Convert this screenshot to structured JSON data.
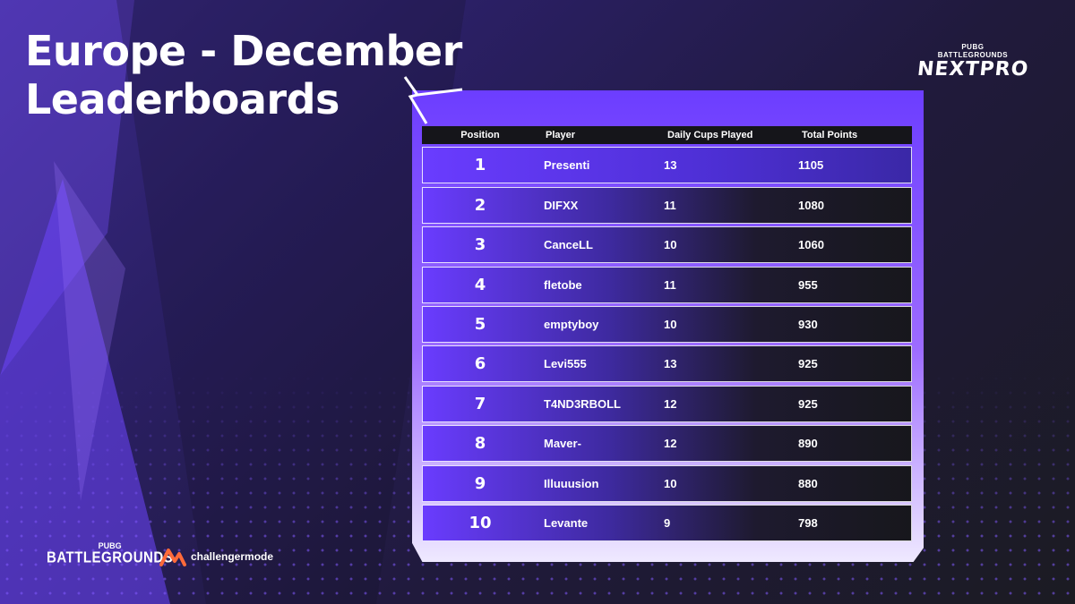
{
  "title": {
    "line1": "Europe - December",
    "line2": "Leaderboards"
  },
  "brand": {
    "top_small": "PUBG",
    "top_mid": "BATTLEGROUNDS",
    "top_big": "NEXTPRO"
  },
  "table": {
    "headers": {
      "position": "Position",
      "player": "Player",
      "cups": "Daily Cups Played",
      "points": "Total Points"
    },
    "rows": [
      {
        "position": "1",
        "player": "Presenti",
        "cups": "13",
        "points": "1105"
      },
      {
        "position": "2",
        "player": "DIFXX",
        "cups": "11",
        "points": "1080"
      },
      {
        "position": "3",
        "player": "CanceLL",
        "cups": "10",
        "points": "1060"
      },
      {
        "position": "4",
        "player": "fletobe",
        "cups": "11",
        "points": "955"
      },
      {
        "position": "5",
        "player": "emptyboy",
        "cups": "10",
        "points": "930"
      },
      {
        "position": "6",
        "player": "Levi555",
        "cups": "13",
        "points": "925"
      },
      {
        "position": "7",
        "player": "T4ND3RBOLL",
        "cups": "12",
        "points": "925"
      },
      {
        "position": "8",
        "player": "Maver-",
        "cups": "12",
        "points": "890"
      },
      {
        "position": "9",
        "player": "Illuuusion",
        "cups": "10",
        "points": "880"
      },
      {
        "position": "10",
        "player": "Levante",
        "cups": "9",
        "points": "798"
      }
    ]
  },
  "footer": {
    "pubg_small": "PUBG",
    "pubg_big": "BATTLEGROUNDS",
    "partner": "challengermode"
  },
  "colors": {
    "accent": "#6c3dff",
    "partner": "#ff6a3a",
    "header_bg": "#15151a"
  }
}
